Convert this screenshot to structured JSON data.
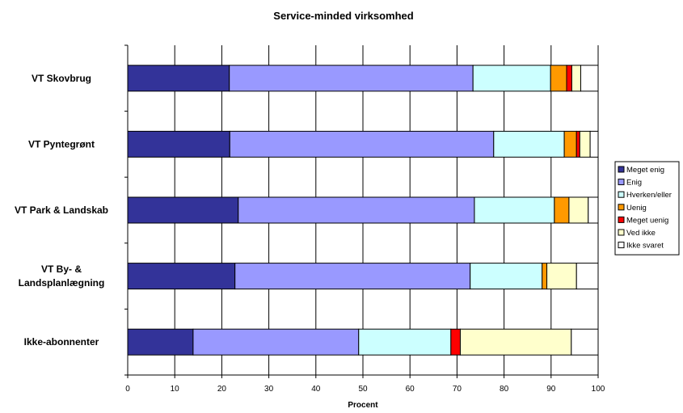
{
  "chart_data": {
    "type": "bar",
    "orientation": "horizontal",
    "stacked": true,
    "title": "Service-minded virksomhed",
    "xlabel": "Procent",
    "ylabel": "",
    "xlim": [
      0,
      100
    ],
    "xticks": [
      0,
      10,
      20,
      30,
      40,
      50,
      60,
      70,
      80,
      90,
      100
    ],
    "grid": "vertical",
    "legend_position": "right",
    "categories": [
      [
        "VT Skovbrug"
      ],
      [
        "VT Pyntegrønt"
      ],
      [
        "VT Park & Landskab"
      ],
      [
        "VT By- &",
        "Landsplanlægning"
      ],
      [
        "Ikke-abonnenter"
      ]
    ],
    "series": [
      {
        "name": "Meget enig",
        "color": "#333399",
        "values": [
          21.6,
          21.7,
          23.5,
          22.8,
          13.9
        ]
      },
      {
        "name": "Enig",
        "color": "#9999FF",
        "values": [
          51.8,
          56.1,
          50.2,
          50.0,
          35.2
        ]
      },
      {
        "name": "Hverken/eller",
        "color": "#CCFFFF",
        "values": [
          16.5,
          15.0,
          17.0,
          15.3,
          19.6
        ]
      },
      {
        "name": "Uenig",
        "color": "#FF9900",
        "values": [
          3.4,
          2.6,
          3.1,
          1.0,
          0.0
        ]
      },
      {
        "name": "Meget uenig",
        "color": "#FF0000",
        "values": [
          1.1,
          0.7,
          0.0,
          0.0,
          2.0
        ]
      },
      {
        "name": "Ved ikke",
        "color": "#FFFFCC",
        "values": [
          1.9,
          2.2,
          4.1,
          6.3,
          23.6
        ]
      },
      {
        "name": "Ikke svaret",
        "color": "#FFFFFF",
        "values": [
          3.7,
          1.7,
          2.1,
          4.6,
          5.7
        ]
      }
    ]
  }
}
